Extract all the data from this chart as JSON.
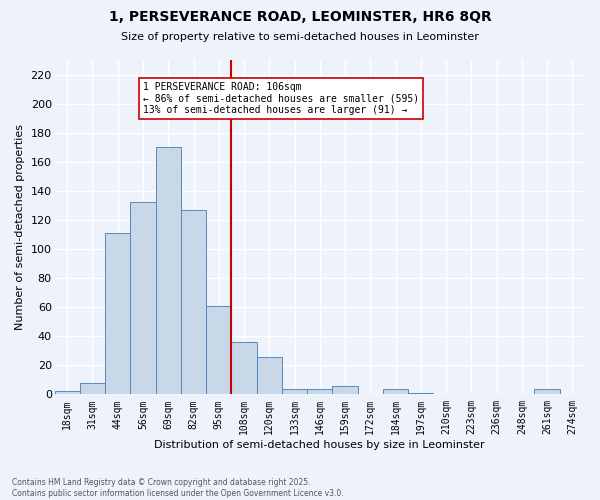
{
  "title": "1, PERSEVERANCE ROAD, LEOMINSTER, HR6 8QR",
  "subtitle": "Size of property relative to semi-detached houses in Leominster",
  "xlabel": "Distribution of semi-detached houses by size in Leominster",
  "ylabel": "Number of semi-detached properties",
  "footer_line1": "Contains HM Land Registry data © Crown copyright and database right 2025.",
  "footer_line2": "Contains public sector information licensed under the Open Government Licence v3.0.",
  "bin_labels": [
    "18sqm",
    "31sqm",
    "44sqm",
    "56sqm",
    "69sqm",
    "82sqm",
    "95sqm",
    "108sqm",
    "120sqm",
    "133sqm",
    "146sqm",
    "159sqm",
    "172sqm",
    "184sqm",
    "197sqm",
    "210sqm",
    "223sqm",
    "236sqm",
    "248sqm",
    "261sqm",
    "274sqm"
  ],
  "bar_values": [
    2,
    8,
    111,
    132,
    170,
    127,
    61,
    36,
    26,
    4,
    4,
    6,
    0,
    4,
    1,
    0,
    0,
    0,
    0,
    4,
    0
  ],
  "bar_color": "#c8d8e8",
  "bar_edge_color": "#5588bb",
  "vline_color": "#cc0000",
  "annotation_title": "1 PERSEVERANCE ROAD: 106sqm",
  "annotation_line1": "← 86% of semi-detached houses are smaller (595)",
  "annotation_line2": "13% of semi-detached houses are larger (91) →",
  "annotation_box_color": "#ffffff",
  "annotation_box_edge": "#cc0000",
  "ylim": [
    0,
    230
  ],
  "yticks": [
    0,
    20,
    40,
    60,
    80,
    100,
    120,
    140,
    160,
    180,
    200,
    220
  ],
  "bg_color": "#eef2fb",
  "grid_color": "#ffffff"
}
